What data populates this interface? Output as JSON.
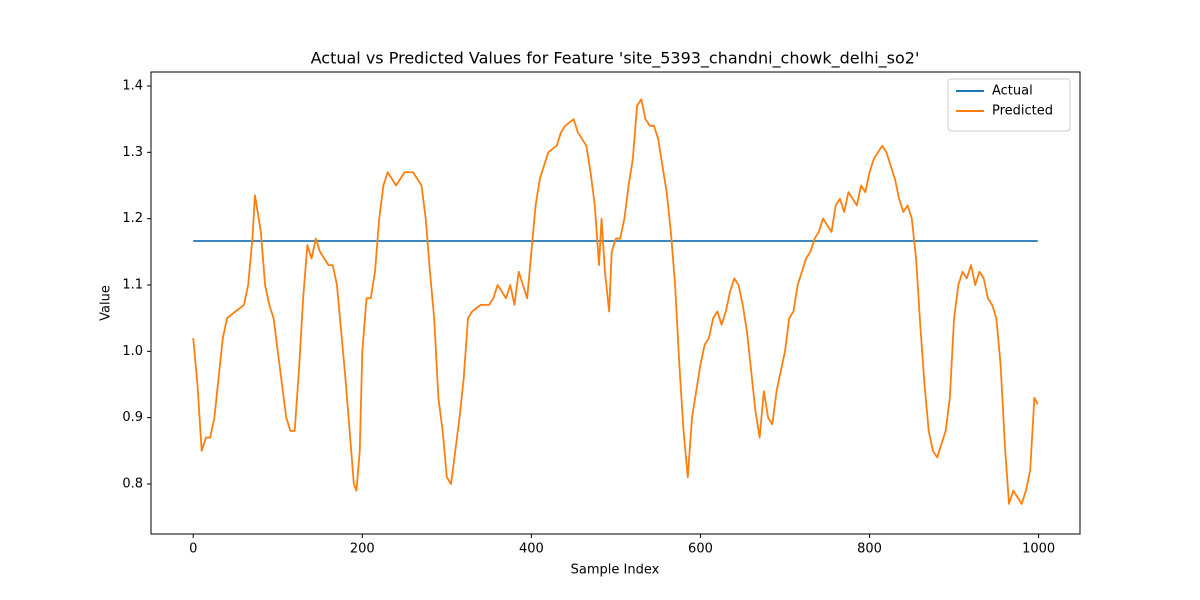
{
  "chart_data": {
    "type": "line",
    "title": "Actual vs Predicted Values for Feature 'site_5393_chandni_chowk_delhi_so2'",
    "x_label": "Sample Index",
    "y_label": "Value",
    "xlim": [
      -49.95,
      1048.95
    ],
    "ylim": [
      0.7246,
      1.4211
    ],
    "xticks": [
      0,
      200,
      400,
      600,
      800,
      1000
    ],
    "yticks": [
      0.8,
      0.9,
      {
        "value": 1,
        "label": "1.0"
      },
      1.1,
      1.2,
      1.3,
      1.4
    ],
    "legend": "upper right",
    "series": [
      {
        "name": "Actual",
        "color": "#1f77b4",
        "x": [
          0,
          999
        ],
        "values": [
          1.1663,
          1.1663
        ]
      },
      {
        "name": "Predicted",
        "color": "#ff7f0e",
        "x": [
          0,
          5,
          10,
          15,
          20,
          25,
          30,
          35,
          40,
          50,
          60,
          65,
          70,
          73,
          75,
          80,
          85,
          90,
          95,
          100,
          105,
          110,
          115,
          120,
          125,
          130,
          135,
          140,
          145,
          150,
          155,
          160,
          165,
          170,
          175,
          180,
          185,
          190,
          193,
          197,
          200,
          205,
          210,
          215,
          220,
          225,
          230,
          240,
          250,
          260,
          270,
          275,
          280,
          285,
          290,
          295,
          300,
          305,
          310,
          315,
          320,
          325,
          330,
          340,
          350,
          355,
          360,
          365,
          370,
          375,
          380,
          385,
          390,
          395,
          400,
          405,
          410,
          415,
          420,
          430,
          435,
          440,
          450,
          455,
          460,
          465,
          470,
          475,
          480,
          483,
          487,
          492,
          495,
          500,
          505,
          510,
          515,
          520,
          525,
          530,
          535,
          540,
          545,
          550,
          555,
          560,
          565,
          570,
          575,
          580,
          585,
          590,
          595,
          600,
          605,
          610,
          615,
          620,
          625,
          630,
          635,
          640,
          645,
          650,
          655,
          660,
          665,
          670,
          675,
          680,
          685,
          690,
          695,
          700,
          705,
          710,
          715,
          720,
          725,
          730,
          735,
          740,
          745,
          750,
          755,
          760,
          765,
          770,
          775,
          780,
          785,
          790,
          795,
          800,
          805,
          810,
          815,
          820,
          825,
          830,
          835,
          840,
          845,
          850,
          855,
          860,
          865,
          870,
          875,
          880,
          885,
          890,
          895,
          900,
          905,
          910,
          915,
          920,
          925,
          930,
          935,
          940,
          945,
          950,
          955,
          960,
          965,
          970,
          975,
          980,
          985,
          990,
          995,
          999
        ],
        "values": [
          1.02,
          0.95,
          0.85,
          0.87,
          0.87,
          0.9,
          0.96,
          1.02,
          1.05,
          1.06,
          1.07,
          1.1,
          1.17,
          1.235,
          1.22,
          1.18,
          1.1,
          1.07,
          1.05,
          1.0,
          0.95,
          0.9,
          0.88,
          0.88,
          0.97,
          1.08,
          1.16,
          1.14,
          1.17,
          1.15,
          1.14,
          1.13,
          1.13,
          1.1,
          1.03,
          0.96,
          0.88,
          0.8,
          0.79,
          0.85,
          1.0,
          1.08,
          1.08,
          1.12,
          1.2,
          1.25,
          1.27,
          1.25,
          1.27,
          1.27,
          1.25,
          1.2,
          1.12,
          1.05,
          0.93,
          0.88,
          0.81,
          0.8,
          0.85,
          0.9,
          0.96,
          1.05,
          1.06,
          1.07,
          1.07,
          1.08,
          1.1,
          1.09,
          1.08,
          1.1,
          1.07,
          1.12,
          1.1,
          1.08,
          1.15,
          1.22,
          1.26,
          1.28,
          1.3,
          1.31,
          1.33,
          1.34,
          1.35,
          1.33,
          1.32,
          1.31,
          1.27,
          1.22,
          1.13,
          1.2,
          1.12,
          1.06,
          1.15,
          1.17,
          1.17,
          1.2,
          1.25,
          1.29,
          1.37,
          1.38,
          1.35,
          1.34,
          1.34,
          1.32,
          1.28,
          1.24,
          1.18,
          1.1,
          0.98,
          0.88,
          0.81,
          0.9,
          0.94,
          0.98,
          1.01,
          1.02,
          1.05,
          1.06,
          1.04,
          1.06,
          1.09,
          1.11,
          1.1,
          1.07,
          1.03,
          0.97,
          0.91,
          0.87,
          0.94,
          0.9,
          0.89,
          0.94,
          0.97,
          1.0,
          1.05,
          1.06,
          1.1,
          1.12,
          1.14,
          1.15,
          1.17,
          1.18,
          1.2,
          1.19,
          1.18,
          1.22,
          1.23,
          1.21,
          1.24,
          1.23,
          1.22,
          1.25,
          1.24,
          1.27,
          1.29,
          1.3,
          1.31,
          1.3,
          1.28,
          1.26,
          1.23,
          1.21,
          1.22,
          1.2,
          1.14,
          1.04,
          0.95,
          0.88,
          0.85,
          0.84,
          0.86,
          0.88,
          0.93,
          1.05,
          1.1,
          1.12,
          1.11,
          1.13,
          1.1,
          1.12,
          1.11,
          1.08,
          1.07,
          1.05,
          0.98,
          0.86,
          0.77,
          0.79,
          0.78,
          0.77,
          0.79,
          0.82,
          0.93,
          0.92
        ]
      }
    ]
  }
}
